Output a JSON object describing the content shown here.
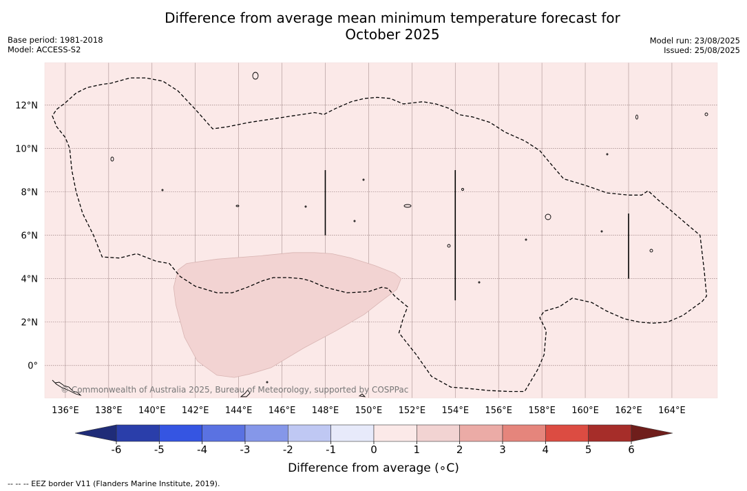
{
  "title": "Difference from average mean minimum temperature forecast for October 2025",
  "title_line1": "Difference from average mean minimum temperature forecast for",
  "title_line2": "October 2025",
  "base_period": "Base period: 1981-2018",
  "model": "Model: ACCESS-S2",
  "model_run": "Model run: 23/08/2025",
  "issued": "Issued: 25/08/2025",
  "copyright": "© Commonwealth of Australia 2025, Bureau of Meteorology, supported by COSPPac",
  "map": {
    "lon_labels": [
      "136°E",
      "138°E",
      "140°E",
      "142°E",
      "144°E",
      "146°E",
      "148°E",
      "150°E",
      "152°E",
      "154°E",
      "156°E",
      "158°E",
      "160°E",
      "162°E",
      "164°E"
    ],
    "lon_values": [
      136,
      138,
      140,
      142,
      144,
      146,
      148,
      150,
      152,
      154,
      156,
      158,
      160,
      162,
      164
    ],
    "lat_labels": [
      "12°N",
      "10°N",
      "8°N",
      "6°N",
      "4°N",
      "2°N",
      "0°"
    ],
    "lat_values": [
      12,
      10,
      8,
      6,
      4,
      2,
      0
    ],
    "lon_range": [
      135.05,
      166.1
    ],
    "lat_range": [
      -1.5,
      13.95
    ],
    "background_anomaly_class": "0 to 1",
    "background_color": "#fbe9e8",
    "anomaly_patch_class": "1 to 2",
    "anomaly_patch_color": "#f2d3d2",
    "anomaly_patch_outline": [
      [
        141.2,
        4.4
      ],
      [
        141.6,
        4.7
      ],
      [
        143,
        4.9
      ],
      [
        145,
        5.05
      ],
      [
        146.5,
        5.2
      ],
      [
        147.5,
        5.2
      ],
      [
        148.3,
        5.15
      ],
      [
        149.2,
        4.95
      ],
      [
        150.3,
        4.6
      ],
      [
        151.2,
        4.25
      ],
      [
        151.5,
        4.0
      ],
      [
        151.3,
        3.5
      ],
      [
        150.5,
        2.9
      ],
      [
        149.8,
        2.35
      ],
      [
        148.5,
        1.6
      ],
      [
        147,
        0.8
      ],
      [
        145.5,
        -0.1
      ],
      [
        144.5,
        -0.4
      ],
      [
        143.8,
        -0.55
      ],
      [
        143,
        -0.45
      ],
      [
        142.1,
        0.2
      ],
      [
        141.5,
        1.3
      ],
      [
        141.1,
        2.8
      ],
      [
        141.0,
        3.6
      ]
    ],
    "eez_outline": [
      [
        135.4,
        11.5
      ],
      [
        135.6,
        11.0
      ],
      [
        136.0,
        10.5
      ],
      [
        136.2,
        10.0
      ],
      [
        136.3,
        9.0
      ],
      [
        136.5,
        8.0
      ],
      [
        136.8,
        7.0
      ],
      [
        137.3,
        6.0
      ],
      [
        137.7,
        5.0
      ],
      [
        138.5,
        4.95
      ],
      [
        139.3,
        5.15
      ],
      [
        140.2,
        4.8
      ],
      [
        140.8,
        4.7
      ],
      [
        141.3,
        4.1
      ],
      [
        142,
        3.65
      ],
      [
        143,
        3.35
      ],
      [
        143.7,
        3.35
      ],
      [
        144.4,
        3.6
      ],
      [
        145.1,
        3.9
      ],
      [
        145.6,
        4.05
      ],
      [
        146.3,
        4.05
      ],
      [
        146.9,
        4.0
      ],
      [
        147.3,
        3.9
      ],
      [
        148,
        3.6
      ],
      [
        149,
        3.35
      ],
      [
        150,
        3.4
      ],
      [
        150.6,
        3.6
      ],
      [
        150.9,
        3.55
      ],
      [
        151.2,
        3.2
      ],
      [
        151.8,
        2.7
      ],
      [
        151.6,
        2.2
      ],
      [
        151.4,
        1.5
      ],
      [
        152.2,
        0.5
      ],
      [
        152.9,
        -0.5
      ],
      [
        153.8,
        -1.0
      ],
      [
        154.5,
        -1.05
      ],
      [
        155.5,
        -1.15
      ],
      [
        156.5,
        -1.2
      ],
      [
        157.2,
        -1.2
      ],
      [
        157.8,
        -0.2
      ],
      [
        158.1,
        0.5
      ],
      [
        158.2,
        1.6
      ],
      [
        157.9,
        2.2
      ],
      [
        158.1,
        2.5
      ],
      [
        158.8,
        2.7
      ],
      [
        159.4,
        3.1
      ],
      [
        160.3,
        2.9
      ],
      [
        161.0,
        2.5
      ],
      [
        161.8,
        2.15
      ],
      [
        162.5,
        2.0
      ],
      [
        163.1,
        1.95
      ],
      [
        163.8,
        2.0
      ],
      [
        164.5,
        2.3
      ],
      [
        165.4,
        2.95
      ],
      [
        165.6,
        3.2
      ],
      [
        165.5,
        4.3
      ],
      [
        165.3,
        6.0
      ],
      [
        164.7,
        6.5
      ],
      [
        164.0,
        7.1
      ],
      [
        163.4,
        7.6
      ],
      [
        162.9,
        8.05
      ],
      [
        162.6,
        7.85
      ],
      [
        162.0,
        7.85
      ],
      [
        161.0,
        7.95
      ],
      [
        160.0,
        8.3
      ],
      [
        159.0,
        8.6
      ],
      [
        158.4,
        9.3
      ],
      [
        157.9,
        9.9
      ],
      [
        157.2,
        10.35
      ],
      [
        156.3,
        10.75
      ],
      [
        155.6,
        11.2
      ],
      [
        154.8,
        11.45
      ],
      [
        154.2,
        11.55
      ],
      [
        153.7,
        11.85
      ],
      [
        153.1,
        12.05
      ],
      [
        152.5,
        12.15
      ],
      [
        151.6,
        12.05
      ],
      [
        151.0,
        12.3
      ],
      [
        150.4,
        12.35
      ],
      [
        149.8,
        12.3
      ],
      [
        149.2,
        12.15
      ],
      [
        148.5,
        11.85
      ],
      [
        147.9,
        11.55
      ],
      [
        147.8,
        11.6
      ],
      [
        147.5,
        11.65
      ],
      [
        146.5,
        11.5
      ],
      [
        145.5,
        11.35
      ],
      [
        144.5,
        11.2
      ],
      [
        143.5,
        11.0
      ],
      [
        142.8,
        10.9
      ],
      [
        142.0,
        11.8
      ],
      [
        141.2,
        12.65
      ],
      [
        140.5,
        13.1
      ],
      [
        139.7,
        13.25
      ],
      [
        139.0,
        13.25
      ],
      [
        138.1,
        13.0
      ],
      [
        137.7,
        12.95
      ],
      [
        137.0,
        12.8
      ],
      [
        136.5,
        12.55
      ],
      [
        136.0,
        12.1
      ],
      [
        135.6,
        11.8
      ]
    ],
    "eez_segments": [
      [
        [
          148.0,
          9.0
        ],
        [
          148.0,
          6.0
        ]
      ],
      [
        [
          154.0,
          9.0
        ],
        [
          154.0,
          3.0
        ]
      ],
      [
        [
          162.0,
          7.0
        ],
        [
          162.0,
          4.0
        ]
      ]
    ]
  },
  "colorbar": {
    "title": "Difference from average (∘C)",
    "ticks": [
      "-6",
      "-5",
      "-4",
      "-3",
      "-2",
      "-1",
      "0",
      "1",
      "2",
      "3",
      "4",
      "5",
      "6"
    ],
    "bounds": [
      -6,
      -5,
      -4,
      -3,
      -2,
      -1,
      0,
      1,
      2,
      3,
      4,
      5,
      6
    ],
    "colors": [
      "#2a3eaa",
      "#3555e2",
      "#5a72e2",
      "#8597e9",
      "#bfc8f3",
      "#e7eafa",
      "#fbe9e8",
      "#f2d3d2",
      "#ebaba6",
      "#e5857c",
      "#dc4c42",
      "#a62d29"
    ],
    "under_color": "#1f2c78",
    "over_color": "#6f1e1b"
  },
  "footnote": "--  --  -- EEZ border V11 (Flanders Marine Institute, 2019)."
}
